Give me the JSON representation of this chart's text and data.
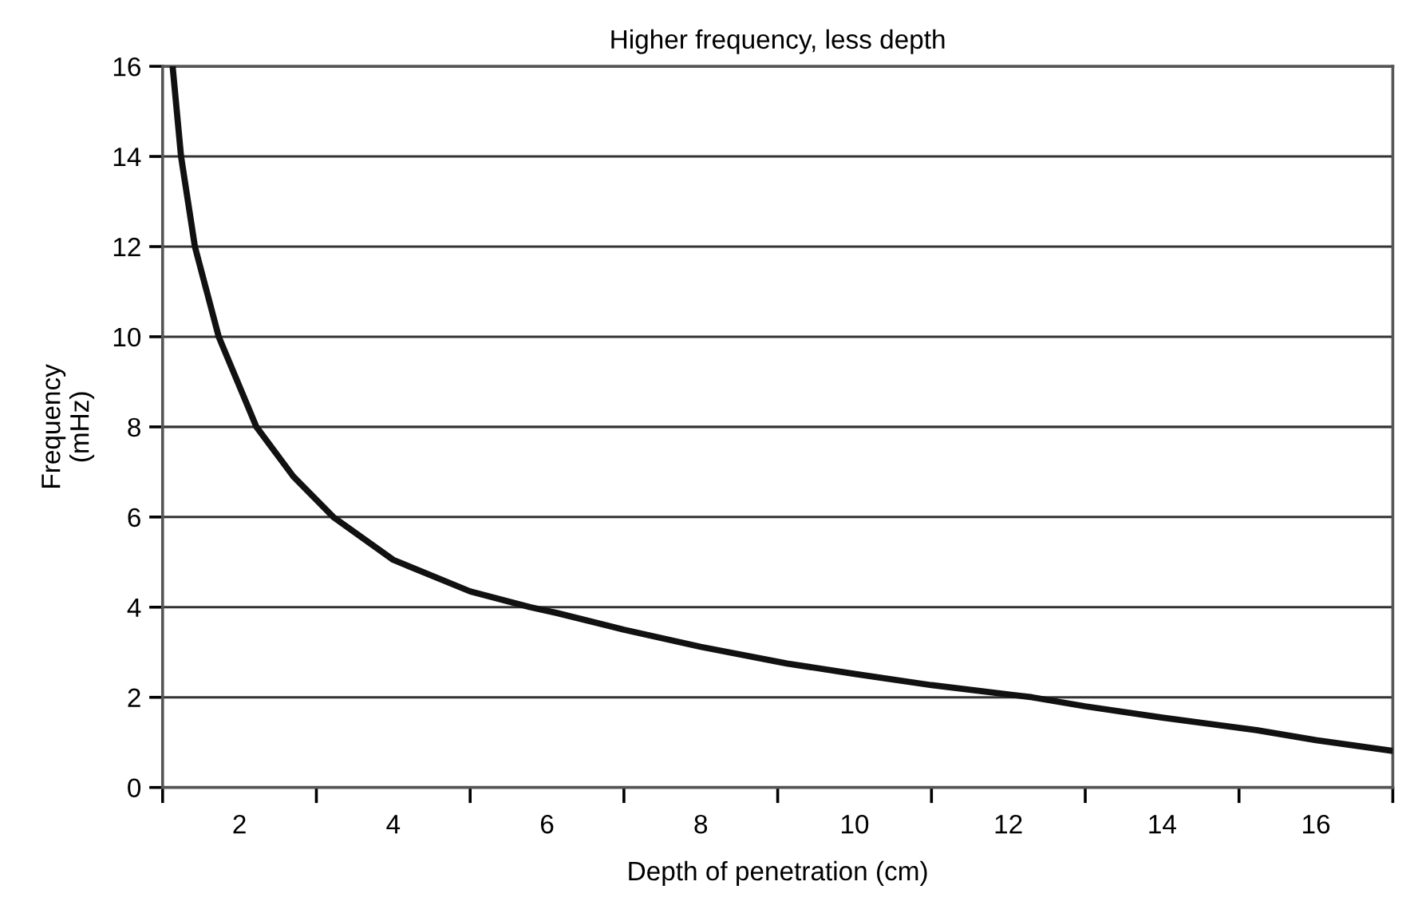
{
  "chart_data": {
    "type": "line",
    "title": "Higher frequency, less depth",
    "xlabel": "Depth of penetration (cm)",
    "ylabel": "Frequency\n(mHz)",
    "x": [
      1.13,
      1.24,
      1.42,
      1.73,
      2.22,
      2.7,
      3.22,
      4,
      5,
      5.78,
      6.13,
      7,
      8,
      9.12,
      10,
      11,
      12.31,
      13,
      14,
      15.23,
      16,
      17
    ],
    "series": [
      {
        "color": "#111111",
        "values": [
          16,
          14,
          12,
          10,
          8,
          6.9,
          6,
          5.05,
          4.35,
          4,
          3.87,
          3.5,
          3.12,
          2.75,
          2.52,
          2.27,
          2,
          1.8,
          1.55,
          1.27,
          1.05,
          0.81
        ]
      }
    ],
    "xlim": [
      1,
      17
    ],
    "xticks": [
      {
        "value": 1,
        "label": null
      },
      2,
      {
        "value": 3,
        "label": null
      },
      4,
      {
        "value": 5,
        "label": null
      },
      6,
      {
        "value": 7,
        "label": null
      },
      8,
      {
        "value": 9,
        "label": null
      },
      10,
      {
        "value": 11,
        "label": null
      },
      12,
      {
        "value": 13,
        "label": null
      },
      14,
      {
        "value": 15,
        "label": null
      },
      16,
      {
        "value": 17,
        "label": null
      }
    ],
    "ylim": [
      0,
      16
    ],
    "yticks": [
      0,
      2,
      4,
      6,
      8,
      10,
      12,
      14,
      16
    ],
    "grid": "y",
    "marker": "none",
    "line_style": "solid"
  }
}
